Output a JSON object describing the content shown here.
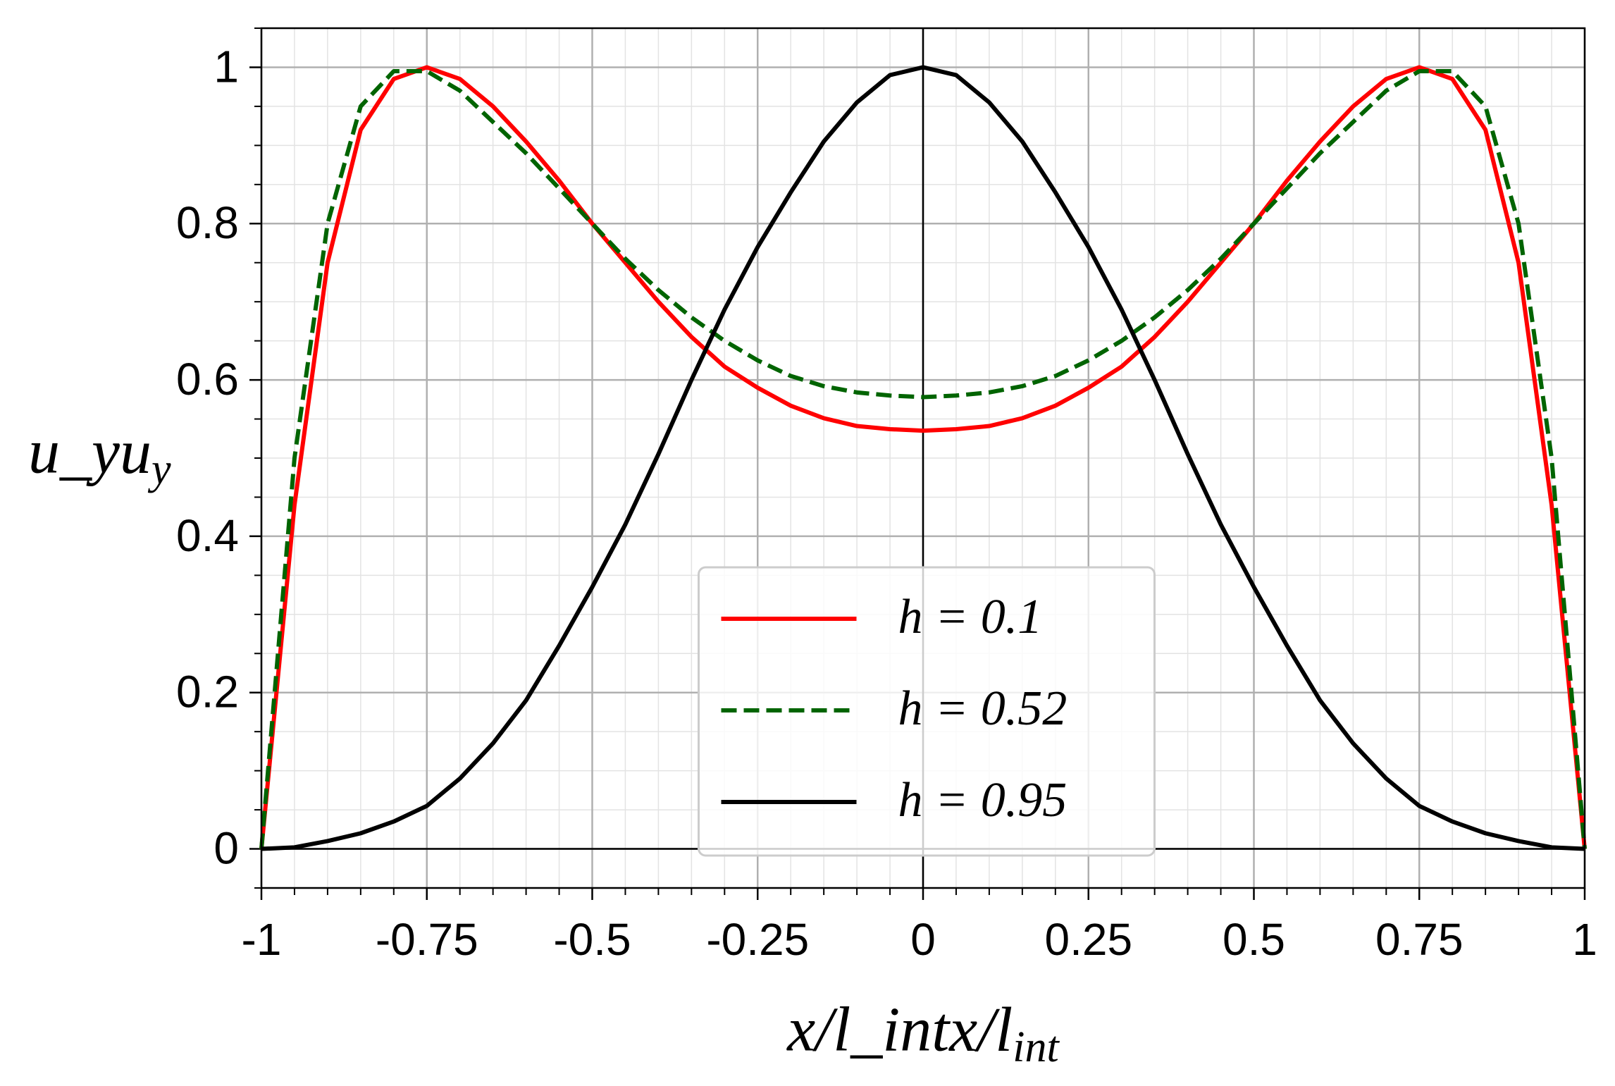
{
  "chart_data": {
    "type": "line",
    "x_label": "x/l_int",
    "y_label": "u_y",
    "x": [
      -1,
      -0.95,
      -0.9,
      -0.85,
      -0.8,
      -0.75,
      -0.7,
      -0.65,
      -0.6,
      -0.55,
      -0.5,
      -0.45,
      -0.4,
      -0.35,
      -0.3,
      -0.25,
      -0.2,
      -0.15,
      -0.1,
      -0.05,
      0,
      0.05,
      0.1,
      0.15,
      0.2,
      0.25,
      0.3,
      0.35,
      0.4,
      0.45,
      0.5,
      0.55,
      0.6,
      0.65,
      0.7,
      0.75,
      0.8,
      0.85,
      0.9,
      0.95,
      1
    ],
    "series": [
      {
        "name": "h = 0.1",
        "color": "#ff0000",
        "style": "solid",
        "values": [
          0,
          0.44,
          0.75,
          0.92,
          0.985,
          1,
          0.985,
          0.95,
          0.905,
          0.855,
          0.8,
          0.75,
          0.7,
          0.655,
          0.617,
          0.59,
          0.567,
          0.551,
          0.541,
          0.537,
          0.535,
          0.537,
          0.541,
          0.551,
          0.567,
          0.59,
          0.617,
          0.655,
          0.7,
          0.75,
          0.8,
          0.855,
          0.905,
          0.95,
          0.985,
          1,
          0.985,
          0.92,
          0.75,
          0.44,
          0
        ]
      },
      {
        "name": "h = 0.52",
        "color": "#006400",
        "style": "dashed",
        "values": [
          0,
          0.5,
          0.8,
          0.95,
          0.995,
          0.995,
          0.97,
          0.93,
          0.89,
          0.845,
          0.8,
          0.755,
          0.715,
          0.68,
          0.65,
          0.625,
          0.605,
          0.592,
          0.584,
          0.58,
          0.578,
          0.58,
          0.584,
          0.592,
          0.605,
          0.625,
          0.65,
          0.68,
          0.715,
          0.755,
          0.8,
          0.845,
          0.89,
          0.93,
          0.97,
          0.995,
          0.995,
          0.95,
          0.8,
          0.5,
          0
        ]
      },
      {
        "name": "h = 0.95",
        "color": "#000000",
        "style": "solid",
        "values": [
          0,
          0.002,
          0.01,
          0.02,
          0.035,
          0.055,
          0.09,
          0.135,
          0.19,
          0.26,
          0.335,
          0.415,
          0.505,
          0.6,
          0.69,
          0.77,
          0.84,
          0.905,
          0.955,
          0.99,
          1,
          0.99,
          0.955,
          0.905,
          0.84,
          0.77,
          0.69,
          0.6,
          0.505,
          0.415,
          0.335,
          0.26,
          0.19,
          0.135,
          0.09,
          0.055,
          0.035,
          0.02,
          0.01,
          0.002,
          0
        ]
      }
    ],
    "xlim": [
      -1,
      1
    ],
    "ylim": [
      -0.05,
      1.05
    ],
    "xticks": [
      -1,
      -0.75,
      -0.5,
      -0.25,
      0,
      0.25,
      0.5,
      0.75,
      1
    ],
    "yticks": [
      0,
      0.2,
      0.4,
      0.6,
      0.8,
      1
    ],
    "xminorticks": [
      -0.95,
      -0.9,
      -0.85,
      -0.8,
      -0.7,
      -0.65,
      -0.6,
      -0.55,
      -0.45,
      -0.4,
      -0.35,
      -0.3,
      -0.2,
      -0.15,
      -0.1,
      -0.05,
      0.05,
      0.1,
      0.15,
      0.2,
      0.3,
      0.35,
      0.4,
      0.45,
      0.55,
      0.6,
      0.65,
      0.7,
      0.8,
      0.85,
      0.9,
      0.95
    ],
    "yminorticks": [
      -0.05,
      0.05,
      0.1,
      0.15,
      0.25,
      0.3,
      0.35,
      0.45,
      0.5,
      0.55,
      0.65,
      0.7,
      0.75,
      0.85,
      0.9,
      0.95,
      1.05
    ],
    "grid": true,
    "minor_grid": true,
    "zero_lines": true,
    "legend": "lower center"
  }
}
